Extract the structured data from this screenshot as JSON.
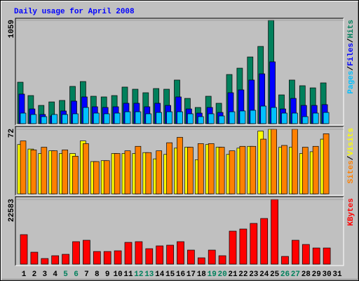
{
  "chart_data": [
    {
      "type": "bar",
      "title": "Daily usage for April 2008",
      "ylim": [
        0,
        1059
      ],
      "yticks": [
        1059
      ],
      "legend_separator": "/",
      "series": [
        {
          "name": "Hits",
          "color": "#00805c",
          "values": [
            425,
            288,
            187,
            223,
            238,
            382,
            432,
            281,
            274,
            288,
            375,
            353,
            317,
            360,
            353,
            447,
            259,
            166,
            281,
            209,
            504,
            569,
            684,
            792,
            1059,
            295,
            447,
            389,
            367,
            418,
            null
          ]
        },
        {
          "name": "Files",
          "color": "#0000ff",
          "values": [
            303,
            151,
            94,
            79,
            130,
            231,
            274,
            173,
            166,
            173,
            209,
            209,
            173,
            209,
            187,
            274,
            151,
            108,
            166,
            115,
            317,
            346,
            447,
            511,
            634,
            151,
            259,
            187,
            187,
            195,
            null
          ]
        },
        {
          "name": "Pages",
          "color": "#00c0ff",
          "values": [
            108,
            94,
            72,
            94,
            94,
            101,
            166,
            108,
            101,
            108,
            122,
            122,
            101,
            115,
            122,
            122,
            101,
            72,
            101,
            79,
            122,
            130,
            137,
            180,
            166,
            108,
            108,
            72,
            108,
            115,
            null
          ]
        }
      ]
    },
    {
      "type": "bar",
      "ylim": [
        0,
        72
      ],
      "yticks": [
        72
      ],
      "legend_separator": "/",
      "series": [
        {
          "name": "Visits",
          "color": "#ffff00",
          "values": [
            55,
            50,
            45,
            48,
            45,
            45,
            59,
            36,
            37,
            45,
            45,
            45,
            46,
            39,
            44,
            51,
            52,
            38,
            55,
            52,
            44,
            51,
            53,
            70,
            72,
            52,
            52,
            45,
            47,
            61,
            null
          ]
        },
        {
          "name": "Sites",
          "color": "#ff8000",
          "values": [
            59,
            49,
            52,
            48,
            49,
            42,
            56,
            36,
            37,
            45,
            48,
            53,
            46,
            48,
            57,
            63,
            52,
            56,
            56,
            52,
            48,
            53,
            53,
            61,
            72,
            54,
            72,
            52,
            53,
            67,
            null
          ]
        }
      ]
    },
    {
      "type": "bar",
      "ylim": [
        0,
        22583
      ],
      "yticks": [
        22583
      ],
      "categories": [
        "1",
        "2",
        "3",
        "4",
        "5",
        "6",
        "7",
        "8",
        "9",
        "10",
        "11",
        "12",
        "13",
        "14",
        "15",
        "16",
        "17",
        "18",
        "19",
        "20",
        "21",
        "22",
        "23",
        "24",
        "25",
        "26",
        "27",
        "28",
        "29",
        "30",
        "31"
      ],
      "category_colors": [
        "#000000",
        "#000000",
        "#000000",
        "#000000",
        "#00805c",
        "#00805c",
        "#000000",
        "#000000",
        "#000000",
        "#000000",
        "#000000",
        "#00805c",
        "#00805c",
        "#000000",
        "#000000",
        "#000000",
        "#000000",
        "#000000",
        "#00805c",
        "#00805c",
        "#000000",
        "#000000",
        "#000000",
        "#000000",
        "#000000",
        "#00805c",
        "#00805c",
        "#000000",
        "#000000",
        "#000000",
        "#000000"
      ],
      "series": [
        {
          "name": "KBytes",
          "color": "#ff0000",
          "values": [
            10310,
            4173,
            1964,
            2946,
            3437,
            7856,
            8347,
            4418,
            4418,
            4664,
            7610,
            7856,
            5400,
            6382,
            6628,
            7856,
            4909,
            2209,
            4909,
            2946,
            11537,
            12274,
            14237,
            15956,
            22583,
            2700,
            8347,
            6873,
            5646,
            5646,
            null
          ]
        }
      ]
    }
  ]
}
